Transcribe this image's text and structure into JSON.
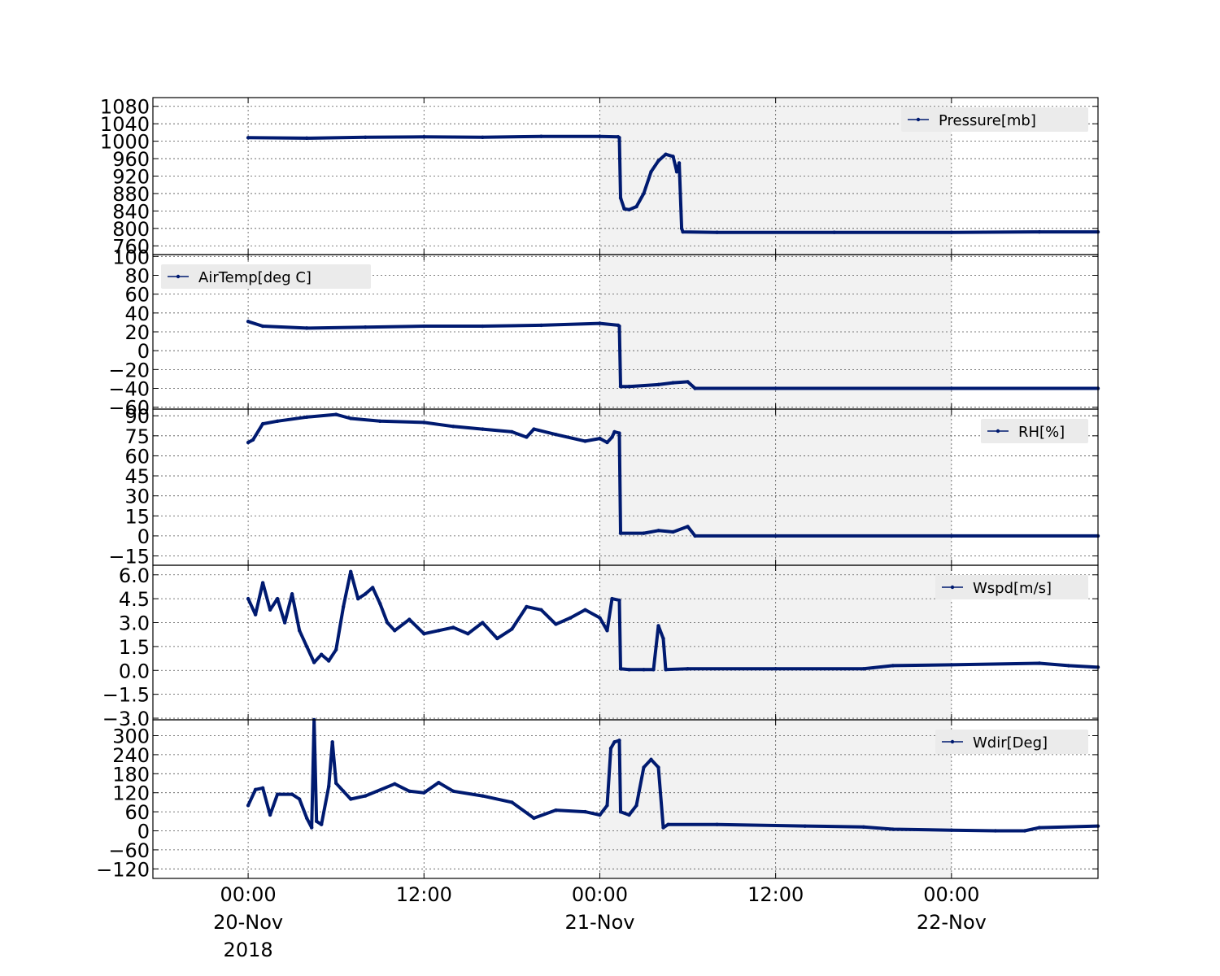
{
  "colors": {
    "series": "#001a70",
    "shade": "#f2f2f2",
    "grid": "#555555"
  },
  "chart_data": {
    "type": "line",
    "x_axis": {
      "start": "2018-11-19 17:30",
      "end": "2018-11-22 10:00",
      "ticks": [
        {
          "value": "2018-11-20 00:00",
          "label": [
            "00:00",
            "20-Nov",
            "2018"
          ]
        },
        {
          "value": "2018-11-20 12:00",
          "label": [
            "12:00"
          ]
        },
        {
          "value": "2018-11-21 00:00",
          "label": [
            "00:00",
            "21-Nov"
          ]
        },
        {
          "value": "2018-11-21 12:00",
          "label": [
            "12:00"
          ]
        },
        {
          "value": "2018-11-22 00:00",
          "label": [
            "00:00",
            "22-Nov"
          ]
        }
      ]
    },
    "shaded_span": {
      "start": "2018-11-21 00:00",
      "end": "2018-11-22 00:00"
    },
    "grid": true,
    "panels": [
      {
        "name": "Pressure[mb]",
        "legend_position": "top-right",
        "ylim": [
          740,
          1100
        ],
        "yticks": [
          760,
          800,
          840,
          880,
          920,
          960,
          1000,
          1040,
          1080
        ],
        "points": [
          [
            "2018-11-20 00:00",
            1008
          ],
          [
            "2018-11-20 04:00",
            1007
          ],
          [
            "2018-11-20 08:00",
            1009
          ],
          [
            "2018-11-20 12:00",
            1010
          ],
          [
            "2018-11-20 16:00",
            1009
          ],
          [
            "2018-11-20 20:00",
            1011
          ],
          [
            "2018-11-21 00:00",
            1011
          ],
          [
            "2018-11-21 01:15",
            1010
          ],
          [
            "2018-11-21 01:20",
            1008
          ],
          [
            "2018-11-21 01:25",
            870
          ],
          [
            "2018-11-21 01:40",
            845
          ],
          [
            "2018-11-21 02:00",
            843
          ],
          [
            "2018-11-21 02:30",
            850
          ],
          [
            "2018-11-21 03:00",
            880
          ],
          [
            "2018-11-21 03:30",
            930
          ],
          [
            "2018-11-21 04:00",
            955
          ],
          [
            "2018-11-21 04:30",
            970
          ],
          [
            "2018-11-21 05:00",
            965
          ],
          [
            "2018-11-21 05:15",
            930
          ],
          [
            "2018-11-21 05:25",
            950
          ],
          [
            "2018-11-21 05:35",
            800
          ],
          [
            "2018-11-21 05:40",
            792
          ],
          [
            "2018-11-21 08:00",
            791
          ],
          [
            "2018-11-21 16:00",
            791
          ],
          [
            "2018-11-22 00:00",
            791
          ],
          [
            "2018-11-22 06:00",
            792
          ],
          [
            "2018-11-22 10:00",
            792
          ]
        ]
      },
      {
        "name": "AirTemp[deg C]",
        "legend_position": "top-left",
        "ylim": [
          -62,
          102
        ],
        "yticks": [
          -60,
          -40,
          -20,
          0,
          20,
          40,
          60,
          80,
          100
        ],
        "points": [
          [
            "2018-11-20 00:00",
            31
          ],
          [
            "2018-11-20 01:00",
            26
          ],
          [
            "2018-11-20 04:00",
            24
          ],
          [
            "2018-11-20 08:00",
            25
          ],
          [
            "2018-11-20 12:00",
            26
          ],
          [
            "2018-11-20 16:00",
            26
          ],
          [
            "2018-11-20 20:00",
            27
          ],
          [
            "2018-11-21 00:00",
            29
          ],
          [
            "2018-11-21 01:15",
            27
          ],
          [
            "2018-11-21 01:20",
            26
          ],
          [
            "2018-11-21 01:25",
            -38
          ],
          [
            "2018-11-21 02:00",
            -38
          ],
          [
            "2018-11-21 04:00",
            -36
          ],
          [
            "2018-11-21 05:00",
            -34
          ],
          [
            "2018-11-21 06:00",
            -33
          ],
          [
            "2018-11-21 06:30",
            -40
          ],
          [
            "2018-11-21 12:00",
            -40
          ],
          [
            "2018-11-22 00:00",
            -40
          ],
          [
            "2018-11-22 10:00",
            -40
          ]
        ]
      },
      {
        "name": "RH[%]",
        "legend_position": "top-right",
        "ylim": [
          -22,
          95
        ],
        "yticks": [
          -15,
          0,
          15,
          30,
          45,
          60,
          75,
          90
        ],
        "points": [
          [
            "2018-11-20 00:00",
            70
          ],
          [
            "2018-11-20 00:20",
            72
          ],
          [
            "2018-11-20 01:00",
            84
          ],
          [
            "2018-11-20 02:00",
            86
          ],
          [
            "2018-11-20 04:00",
            89
          ],
          [
            "2018-11-20 06:00",
            91
          ],
          [
            "2018-11-20 07:00",
            88
          ],
          [
            "2018-11-20 09:00",
            86
          ],
          [
            "2018-11-20 12:00",
            85
          ],
          [
            "2018-11-20 14:00",
            82
          ],
          [
            "2018-11-20 16:00",
            80
          ],
          [
            "2018-11-20 18:00",
            78
          ],
          [
            "2018-11-20 19:00",
            74
          ],
          [
            "2018-11-20 19:30",
            80
          ],
          [
            "2018-11-20 21:00",
            76
          ],
          [
            "2018-11-20 23:00",
            71
          ],
          [
            "2018-11-21 00:00",
            73
          ],
          [
            "2018-11-21 00:30",
            70
          ],
          [
            "2018-11-21 00:50",
            74
          ],
          [
            "2018-11-21 01:00",
            78
          ],
          [
            "2018-11-21 01:20",
            77
          ],
          [
            "2018-11-21 01:25",
            2
          ],
          [
            "2018-11-21 03:00",
            2
          ],
          [
            "2018-11-21 04:00",
            4
          ],
          [
            "2018-11-21 05:00",
            3
          ],
          [
            "2018-11-21 06:00",
            7
          ],
          [
            "2018-11-21 06:30",
            0
          ],
          [
            "2018-11-21 12:00",
            0
          ],
          [
            "2018-11-22 00:00",
            0
          ],
          [
            "2018-11-22 10:00",
            0
          ]
        ]
      },
      {
        "name": "Wspd[m/s]",
        "legend_position": "top-right",
        "ylim": [
          -3.1,
          6.6
        ],
        "yticks": [
          -3.0,
          -1.5,
          0.0,
          1.5,
          3.0,
          4.5,
          6.0
        ],
        "points": [
          [
            "2018-11-20 00:00",
            4.5
          ],
          [
            "2018-11-20 00:30",
            3.5
          ],
          [
            "2018-11-20 01:00",
            5.5
          ],
          [
            "2018-11-20 01:30",
            3.8
          ],
          [
            "2018-11-20 02:00",
            4.5
          ],
          [
            "2018-11-20 02:30",
            3.0
          ],
          [
            "2018-11-20 03:00",
            4.8
          ],
          [
            "2018-11-20 03:30",
            2.5
          ],
          [
            "2018-11-20 04:00",
            1.5
          ],
          [
            "2018-11-20 04:30",
            0.5
          ],
          [
            "2018-11-20 05:00",
            1.0
          ],
          [
            "2018-11-20 05:30",
            0.6
          ],
          [
            "2018-11-20 06:00",
            1.3
          ],
          [
            "2018-11-20 06:30",
            4.0
          ],
          [
            "2018-11-20 07:00",
            6.2
          ],
          [
            "2018-11-20 07:30",
            4.5
          ],
          [
            "2018-11-20 08:00",
            4.8
          ],
          [
            "2018-11-20 08:30",
            5.2
          ],
          [
            "2018-11-20 09:00",
            4.2
          ],
          [
            "2018-11-20 09:30",
            3.0
          ],
          [
            "2018-11-20 10:00",
            2.5
          ],
          [
            "2018-11-20 11:00",
            3.2
          ],
          [
            "2018-11-20 12:00",
            2.3
          ],
          [
            "2018-11-20 13:00",
            2.5
          ],
          [
            "2018-11-20 14:00",
            2.7
          ],
          [
            "2018-11-20 15:00",
            2.3
          ],
          [
            "2018-11-20 16:00",
            3.0
          ],
          [
            "2018-11-20 17:00",
            2.0
          ],
          [
            "2018-11-20 18:00",
            2.6
          ],
          [
            "2018-11-20 19:00",
            4.0
          ],
          [
            "2018-11-20 20:00",
            3.8
          ],
          [
            "2018-11-20 21:00",
            2.9
          ],
          [
            "2018-11-20 22:00",
            3.3
          ],
          [
            "2018-11-20 23:00",
            3.8
          ],
          [
            "2018-11-21 00:00",
            3.3
          ],
          [
            "2018-11-21 00:30",
            2.5
          ],
          [
            "2018-11-21 00:50",
            4.5
          ],
          [
            "2018-11-21 01:20",
            4.4
          ],
          [
            "2018-11-21 01:25",
            0.1
          ],
          [
            "2018-11-21 02:00",
            0.05
          ],
          [
            "2018-11-21 03:00",
            0.05
          ],
          [
            "2018-11-21 03:40",
            0.05
          ],
          [
            "2018-11-21 04:00",
            2.8
          ],
          [
            "2018-11-21 04:20",
            2.0
          ],
          [
            "2018-11-21 04:30",
            0.05
          ],
          [
            "2018-11-21 06:00",
            0.1
          ],
          [
            "2018-11-21 12:00",
            0.1
          ],
          [
            "2018-11-21 18:00",
            0.1
          ],
          [
            "2018-11-21 20:00",
            0.3
          ],
          [
            "2018-11-22 00:00",
            0.35
          ],
          [
            "2018-11-22 06:00",
            0.45
          ],
          [
            "2018-11-22 08:00",
            0.3
          ],
          [
            "2018-11-22 10:00",
            0.2
          ]
        ]
      },
      {
        "name": "Wdir[Deg]",
        "legend_position": "top-right",
        "ylim": [
          -150,
          350
        ],
        "yticks": [
          -120,
          -60,
          0,
          60,
          120,
          180,
          240,
          300
        ],
        "points": [
          [
            "2018-11-20 00:00",
            80
          ],
          [
            "2018-11-20 00:30",
            130
          ],
          [
            "2018-11-20 01:00",
            135
          ],
          [
            "2018-11-20 01:30",
            50
          ],
          [
            "2018-11-20 02:00",
            115
          ],
          [
            "2018-11-20 03:00",
            115
          ],
          [
            "2018-11-20 03:30",
            100
          ],
          [
            "2018-11-20 04:00",
            40
          ],
          [
            "2018-11-20 04:20",
            10
          ],
          [
            "2018-11-20 04:30",
            350
          ],
          [
            "2018-11-20 04:40",
            30
          ],
          [
            "2018-11-20 05:00",
            20
          ],
          [
            "2018-11-20 05:30",
            140
          ],
          [
            "2018-11-20 05:45",
            280
          ],
          [
            "2018-11-20 06:00",
            150
          ],
          [
            "2018-11-20 06:30",
            125
          ],
          [
            "2018-11-20 07:00",
            100
          ],
          [
            "2018-11-20 08:00",
            110
          ],
          [
            "2018-11-20 10:00",
            148
          ],
          [
            "2018-11-20 11:00",
            125
          ],
          [
            "2018-11-20 12:00",
            120
          ],
          [
            "2018-11-20 13:00",
            152
          ],
          [
            "2018-11-20 14:00",
            125
          ],
          [
            "2018-11-20 16:00",
            110
          ],
          [
            "2018-11-20 18:00",
            90
          ],
          [
            "2018-11-20 19:30",
            40
          ],
          [
            "2018-11-20 21:00",
            65
          ],
          [
            "2018-11-20 23:00",
            60
          ],
          [
            "2018-11-21 00:00",
            50
          ],
          [
            "2018-11-21 00:30",
            80
          ],
          [
            "2018-11-21 00:45",
            260
          ],
          [
            "2018-11-21 01:00",
            280
          ],
          [
            "2018-11-21 01:20",
            285
          ],
          [
            "2018-11-21 01:25",
            60
          ],
          [
            "2018-11-21 02:00",
            50
          ],
          [
            "2018-11-21 02:30",
            80
          ],
          [
            "2018-11-21 03:00",
            200
          ],
          [
            "2018-11-21 03:30",
            225
          ],
          [
            "2018-11-21 04:00",
            200
          ],
          [
            "2018-11-21 04:20",
            10
          ],
          [
            "2018-11-21 04:40",
            20
          ],
          [
            "2018-11-21 08:00",
            20
          ],
          [
            "2018-11-21 14:00",
            15
          ],
          [
            "2018-11-21 18:00",
            12
          ],
          [
            "2018-11-21 20:00",
            5
          ],
          [
            "2018-11-22 00:00",
            2
          ],
          [
            "2018-11-22 03:00",
            0
          ],
          [
            "2018-11-22 05:00",
            0
          ],
          [
            "2018-11-22 06:00",
            10
          ],
          [
            "2018-11-22 10:00",
            15
          ]
        ]
      }
    ]
  }
}
